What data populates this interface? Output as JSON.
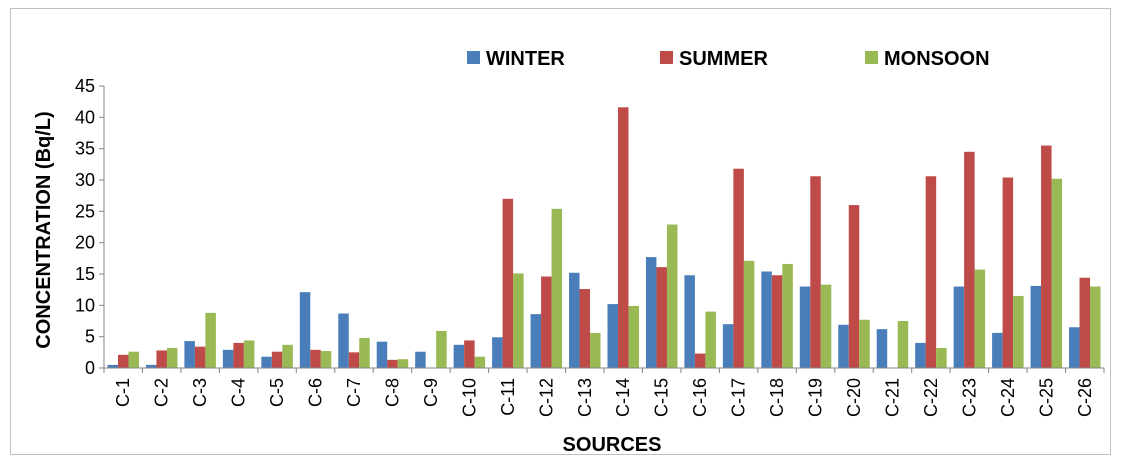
{
  "chart_data": {
    "type": "bar",
    "xlabel": "SOURCES",
    "ylabel": "CONCENTRATION (Bq/L)",
    "ylim": [
      0,
      45
    ],
    "yticks": [
      0,
      5,
      10,
      15,
      20,
      25,
      30,
      35,
      40,
      45
    ],
    "grid": false,
    "legend_position": "top",
    "categories": [
      "C-1",
      "C-2",
      "C-3",
      "C-4",
      "C-5",
      "C-6",
      "C-7",
      "C-8",
      "C-9",
      "C-10",
      "C-11",
      "C-12",
      "C-13",
      "C-14",
      "C-15",
      "C-16",
      "C-17",
      "C-18",
      "C-19",
      "C-20",
      "C-21",
      "C-22",
      "C-23",
      "C-24",
      "C-25",
      "C-26"
    ],
    "series": [
      {
        "name": "WINTER",
        "color": "#4a7ebb",
        "values": [
          0.5,
          0.5,
          4.3,
          2.9,
          1.8,
          12.1,
          8.7,
          4.2,
          2.6,
          3.7,
          4.9,
          8.6,
          15.2,
          10.2,
          17.7,
          14.8,
          7.0,
          15.4,
          13.0,
          6.9,
          6.2,
          4.0,
          13.0,
          5.6,
          13.1,
          6.5
        ]
      },
      {
        "name": "SUMMER",
        "color": "#be4b48",
        "values": [
          2.1,
          2.8,
          3.4,
          4.0,
          2.6,
          2.9,
          2.5,
          1.3,
          0,
          4.4,
          27.0,
          14.6,
          12.6,
          41.6,
          16.1,
          2.3,
          31.8,
          14.8,
          30.6,
          26.0,
          0,
          30.6,
          34.5,
          30.4,
          35.5,
          14.4
        ]
      },
      {
        "name": "MONSOON",
        "color": "#98b954",
        "values": [
          2.6,
          3.2,
          8.8,
          4.4,
          3.7,
          2.7,
          4.8,
          1.4,
          5.9,
          1.8,
          15.1,
          25.4,
          5.6,
          9.9,
          22.9,
          9.0,
          17.1,
          16.6,
          13.3,
          7.7,
          7.5,
          3.2,
          15.7,
          11.5,
          30.2,
          13.0
        ]
      }
    ]
  }
}
